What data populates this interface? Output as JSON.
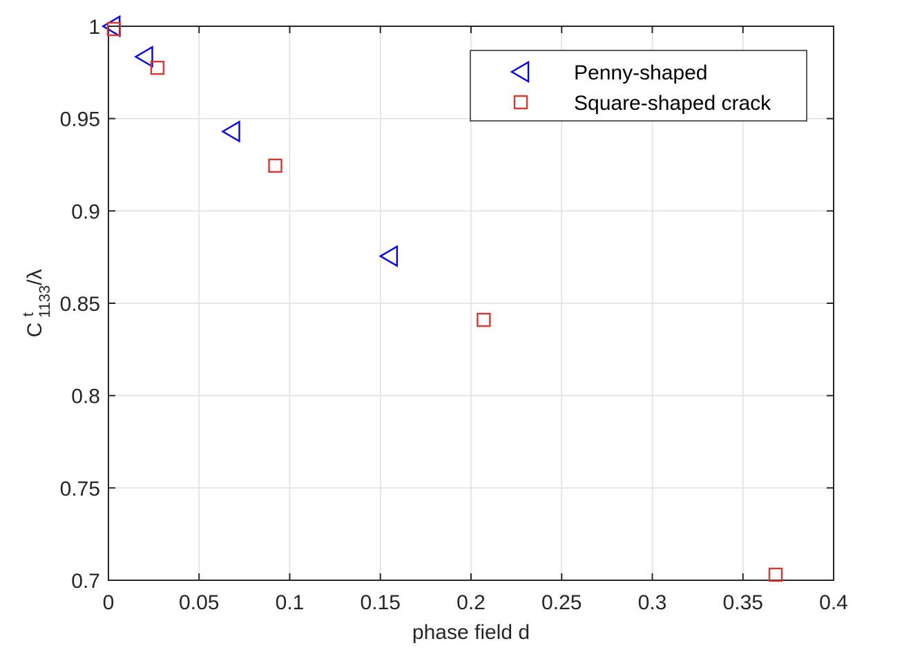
{
  "chart_data": {
    "type": "scatter",
    "title": "",
    "xlabel": "phase field d",
    "ylabel": {
      "base": "C",
      "superscript": "t",
      "subscript": "1133",
      "suffix": "/λ"
    },
    "xlim": [
      0,
      0.4
    ],
    "ylim": [
      0.7,
      1.0
    ],
    "x_ticks": [
      0,
      0.05,
      0.1,
      0.15,
      0.2,
      0.25,
      0.3,
      0.35,
      0.4
    ],
    "x_tick_labels": [
      "0",
      "0.05",
      "0.1",
      "0.15",
      "0.2",
      "0.25",
      "0.3",
      "0.35",
      "0.4"
    ],
    "y_ticks": [
      0.7,
      0.75,
      0.8,
      0.85,
      0.9,
      0.95,
      1.0
    ],
    "y_tick_labels": [
      "0.7",
      "0.75",
      "0.8",
      "0.85",
      "0.9",
      "0.95",
      "1"
    ],
    "grid": true,
    "legend_position": "top-right",
    "series": [
      {
        "name": "Penny-shaped",
        "marker": "triangle-left",
        "color": "#0000ff",
        "x": [
          0.002,
          0.02,
          0.068,
          0.155
        ],
        "y": [
          1.0,
          0.9835,
          0.943,
          0.8755
        ]
      },
      {
        "name": "Square-shaped crack",
        "marker": "square",
        "color": "#d9372b",
        "x": [
          0.003,
          0.027,
          0.092,
          0.207,
          0.368
        ],
        "y": [
          0.9985,
          0.9775,
          0.9245,
          0.841,
          0.703
        ]
      }
    ]
  }
}
